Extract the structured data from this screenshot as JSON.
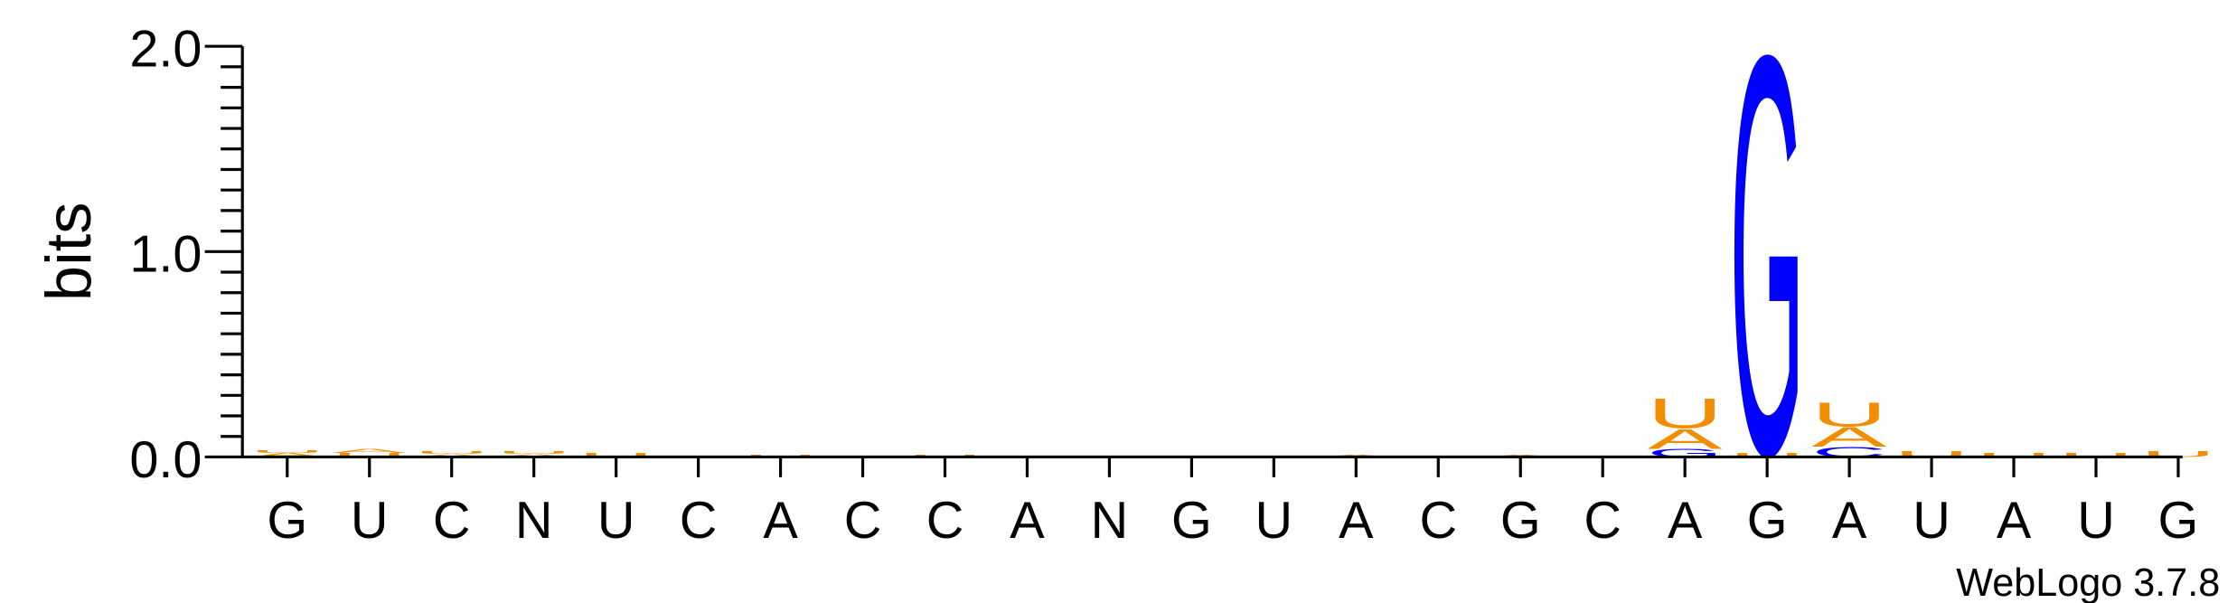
{
  "chart_data": {
    "type": "sequence-logo",
    "ylabel": "bits",
    "ylim": [
      0,
      2.0
    ],
    "yticks": [
      "0.0",
      "1.0",
      "2.0"
    ],
    "footer": "WebLogo 3.7.8",
    "categories": [
      "G",
      "U",
      "C",
      "N",
      "U",
      "C",
      "A",
      "C",
      "C",
      "A",
      "N",
      "G",
      "U",
      "A",
      "C",
      "G",
      "C",
      "A",
      "G",
      "A",
      "U",
      "A",
      "U",
      "G"
    ],
    "colors": {
      "A": "#f28c00",
      "U": "#f28c00",
      "G": "#0000ff",
      "C": "#0000ff"
    },
    "stacks": [
      [
        {
          "letter": "A",
          "bits": 0.02
        },
        {
          "letter": "U",
          "bits": 0.015
        }
      ],
      [
        {
          "letter": "U",
          "bits": 0.02
        },
        {
          "letter": "A",
          "bits": 0.02
        }
      ],
      [
        {
          "letter": "A",
          "bits": 0.015
        },
        {
          "letter": "U",
          "bits": 0.015
        }
      ],
      [
        {
          "letter": "A",
          "bits": 0.015
        },
        {
          "letter": "U",
          "bits": 0.015
        }
      ],
      [
        {
          "letter": "U",
          "bits": 0.02
        }
      ],
      [],
      [
        {
          "letter": "U",
          "bits": 0.01
        }
      ],
      [],
      [
        {
          "letter": "U",
          "bits": 0.01
        }
      ],
      [],
      [],
      [],
      [],
      [
        {
          "letter": "A",
          "bits": 0.01
        }
      ],
      [],
      [
        {
          "letter": "A",
          "bits": 0.01
        }
      ],
      [],
      [
        {
          "letter": "G",
          "bits": 0.04
        },
        {
          "letter": "A",
          "bits": 0.1
        },
        {
          "letter": "U",
          "bits": 0.15
        }
      ],
      [
        {
          "letter": "U",
          "bits": 0.02
        },
        {
          "letter": "G",
          "bits": 2.0
        }
      ],
      [
        {
          "letter": "C",
          "bits": 0.05
        },
        {
          "letter": "A",
          "bits": 0.1
        },
        {
          "letter": "U",
          "bits": 0.12
        }
      ],
      [
        {
          "letter": "U",
          "bits": 0.03
        }
      ],
      [
        {
          "letter": "U",
          "bits": 0.02
        }
      ],
      [
        {
          "letter": "U",
          "bits": 0.02
        }
      ],
      [
        {
          "letter": "U",
          "bits": 0.03
        }
      ]
    ]
  }
}
